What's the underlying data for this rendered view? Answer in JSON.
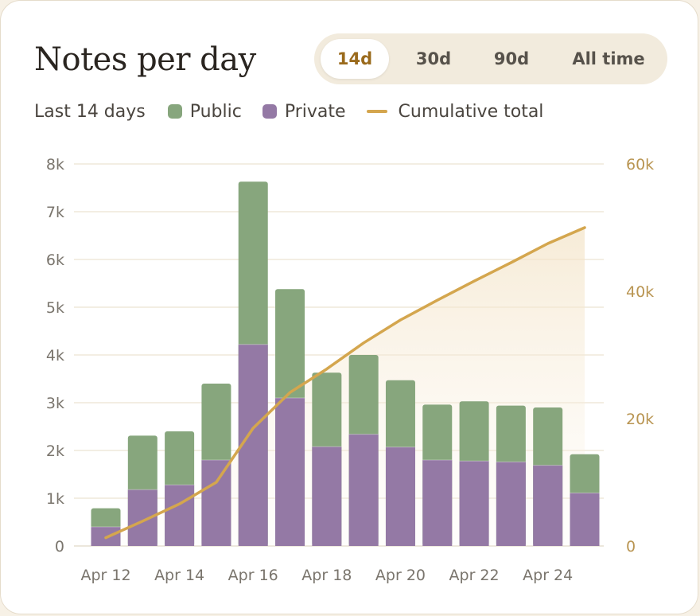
{
  "header": {
    "title": "Notes per day",
    "tabs": [
      {
        "label": "14d",
        "active": true
      },
      {
        "label": "30d",
        "active": false
      },
      {
        "label": "90d",
        "active": false
      },
      {
        "label": "All time",
        "active": false
      }
    ]
  },
  "legend": {
    "range_label": "Last 14 days",
    "public_label": "Public",
    "private_label": "Private",
    "cumulative_label": "Cumulative total"
  },
  "colors": {
    "public": "#87a67d",
    "private": "#9479a5",
    "cumulative": "#d4a64e",
    "right_axis": "#b99552",
    "left_axis": "#7a756d",
    "grid": "#efe8da"
  },
  "chart_data": {
    "type": "bar",
    "stacked": true,
    "categories": [
      "Apr 12",
      "Apr 13",
      "Apr 14",
      "Apr 15",
      "Apr 16",
      "Apr 17",
      "Apr 18",
      "Apr 19",
      "Apr 20",
      "Apr 21",
      "Apr 22",
      "Apr 23",
      "Apr 24",
      "Apr 25"
    ],
    "x_tick_labels": [
      "Apr 12",
      "",
      "Apr 14",
      "",
      "Apr 16",
      "",
      "Apr 18",
      "",
      "Apr 20",
      "",
      "Apr 22",
      "",
      "Apr 24",
      ""
    ],
    "series": [
      {
        "name": "Private",
        "values": [
          400,
          1180,
          1280,
          1800,
          4220,
          3100,
          2080,
          2340,
          2070,
          1800,
          1780,
          1760,
          1690,
          1110
        ]
      },
      {
        "name": "Public",
        "values": [
          390,
          1130,
          1120,
          1600,
          3410,
          2280,
          1550,
          1660,
          1400,
          1160,
          1250,
          1180,
          1210,
          810
        ]
      }
    ],
    "line_series": {
      "name": "Cumulative total",
      "axis": "right",
      "values": [
        1300,
        3900,
        6600,
        10000,
        18500,
        24100,
        27800,
        31900,
        35500,
        38600,
        41600,
        44500,
        47500,
        50000
      ]
    },
    "ylim": [
      0,
      8000
    ],
    "y_ticks": [
      0,
      1000,
      2000,
      3000,
      4000,
      5000,
      6000,
      7000,
      8000
    ],
    "y_tick_labels": [
      "0",
      "1k",
      "2k",
      "3k",
      "4k",
      "5k",
      "6k",
      "7k",
      "8k"
    ],
    "y2lim": [
      0,
      60000
    ],
    "y2_ticks": [
      0,
      20000,
      40000,
      60000
    ],
    "y2_tick_labels": [
      "0",
      "20k",
      "40k",
      "60k"
    ],
    "grid": true,
    "legend_position": "top-left"
  }
}
